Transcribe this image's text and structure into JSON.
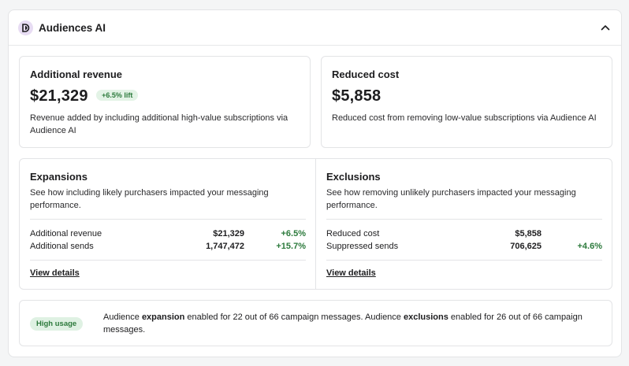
{
  "header": {
    "title": "Audiences AI"
  },
  "revenue_card": {
    "title": "Additional revenue",
    "amount": "$21,329",
    "lift_badge": "+6.5% lift",
    "description": "Revenue added by including additional high-value subscriptions via Audience AI"
  },
  "cost_card": {
    "title": "Reduced cost",
    "amount": "$5,858",
    "description": "Reduced cost from removing low-value subscriptions via Audience AI"
  },
  "expansions": {
    "title": "Expansions",
    "description": "See how including likely purchasers impacted your messaging performance.",
    "rows": [
      {
        "label": "Additional revenue",
        "value": "$21,329",
        "change": "+6.5%"
      },
      {
        "label": "Additional sends",
        "value": "1,747,472",
        "change": "+15.7%"
      }
    ],
    "link": "View details"
  },
  "exclusions": {
    "title": "Exclusions",
    "description": "See how removing unlikely purchasers impacted your messaging performance.",
    "rows": [
      {
        "label": "Reduced cost",
        "value": "$5,858",
        "change": ""
      },
      {
        "label": "Suppressed sends",
        "value": "706,625",
        "change": "+4.6%"
      }
    ],
    "link": "View details"
  },
  "usage": {
    "badge": "High usage",
    "text_1": "Audience ",
    "bold_1": "expansion",
    "text_2": " enabled for 22 out of 66 campaign messages. Audience ",
    "bold_2": "exclusions",
    "text_3": " enabled for 26 out of 66 campaign messages."
  },
  "colors": {
    "positive": "#2c7a3c",
    "badge_bg": "#e3f3e6",
    "logo_bg": "#e7dcf3"
  },
  "icons": {
    "logo": "audiences-ai-logo-icon",
    "collapse": "chevron-up-icon"
  }
}
